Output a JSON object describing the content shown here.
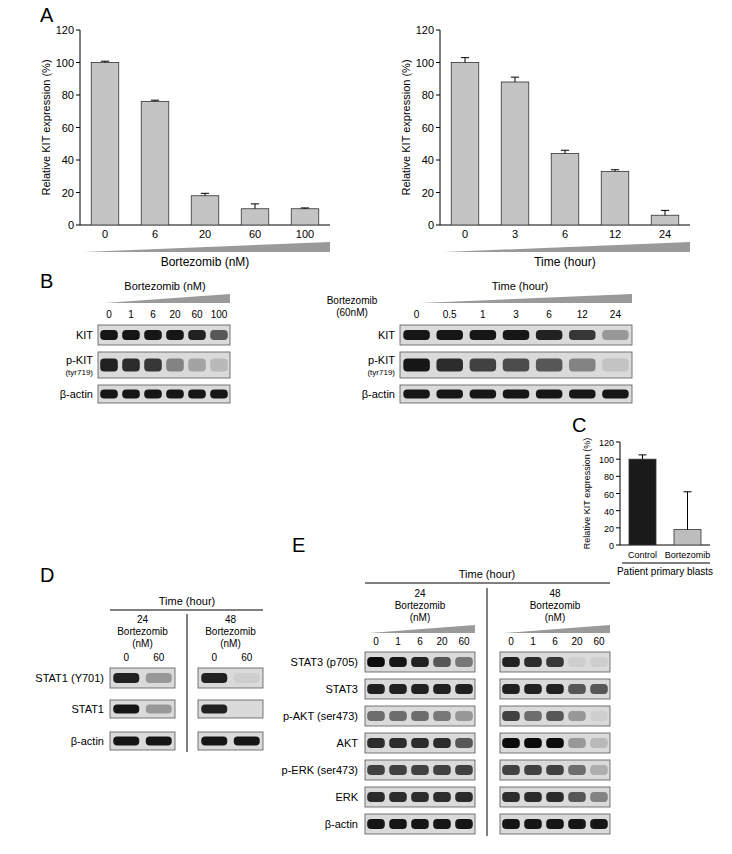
{
  "panel_labels": [
    "A",
    "B",
    "C",
    "D",
    "E"
  ],
  "chart_data": [
    {
      "type": "bar",
      "xlabel": "Bortezomib (nM)",
      "ylabel": "Relative KIT expression (%)",
      "categories": [
        "0",
        "6",
        "20",
        "60",
        "100"
      ],
      "values": [
        100,
        76,
        18,
        10,
        10
      ],
      "errors": [
        0.8,
        0.8,
        1.5,
        3,
        0.5
      ],
      "color": "#c4c4c4",
      "ylim": [
        0,
        120
      ],
      "yticks": [
        0,
        20,
        40,
        60,
        80,
        100,
        120
      ]
    },
    {
      "type": "bar",
      "xlabel": "Time (hour)",
      "ylabel": "Relative KIT expression (%)",
      "categories": [
        "0",
        "3",
        "6",
        "12",
        "24"
      ],
      "values": [
        100,
        88,
        44,
        33,
        6
      ],
      "errors": [
        3,
        3,
        2,
        1,
        3
      ],
      "color": "#c4c4c4",
      "ylim": [
        0,
        120
      ],
      "yticks": [
        0,
        20,
        40,
        60,
        80,
        100,
        120
      ]
    },
    {
      "type": "bar",
      "xlabel": "Patient primary blasts",
      "ylabel": "Relative KIT expression (%)",
      "categories": [
        "Control",
        "Bortezomib"
      ],
      "values": [
        100,
        18
      ],
      "errors": [
        5,
        44
      ],
      "colors": [
        "#1a1a1a",
        "#bdbdbd"
      ],
      "ylim": [
        0,
        120
      ],
      "yticks": [
        0,
        20,
        40,
        60,
        80,
        100,
        120
      ]
    }
  ],
  "blots": [
    {
      "title": "Bortezomib (nM)",
      "lanes": [
        "0",
        "1",
        "6",
        "20",
        "60",
        "100"
      ],
      "rows": [
        {
          "label": "KIT",
          "intensity": [
            0.9,
            0.9,
            0.9,
            0.9,
            0.85,
            0.6
          ]
        },
        {
          "label": "p-KIT",
          "sublabel": "(tyr719)",
          "intensity": [
            0.85,
            0.8,
            0.75,
            0.4,
            0.25,
            0.15
          ]
        },
        {
          "label": "β-actin",
          "intensity": [
            0.9,
            0.9,
            0.9,
            0.9,
            0.9,
            0.9
          ]
        }
      ]
    },
    {
      "title": "Time (hour)",
      "condition": [
        "Bortezomib",
        "(60nM)"
      ],
      "lanes": [
        "0",
        "0.5",
        "1",
        "3",
        "6",
        "12",
        "24"
      ],
      "rows": [
        {
          "label": "KIT",
          "intensity": [
            0.9,
            0.9,
            0.9,
            0.9,
            0.85,
            0.75,
            0.3
          ]
        },
        {
          "label": "p-KIT",
          "sublabel": "(tyr719)",
          "intensity": [
            0.9,
            0.8,
            0.7,
            0.65,
            0.6,
            0.4,
            0.1
          ]
        },
        {
          "label": "β-actin",
          "intensity": [
            0.9,
            0.9,
            0.9,
            0.9,
            0.9,
            0.9,
            0.9
          ]
        }
      ]
    },
    {
      "title": "Time (hour)",
      "groups": [
        {
          "time": "24",
          "condition": [
            "Bortezomib",
            "(nM)"
          ],
          "lanes": [
            "0",
            "60"
          ]
        },
        {
          "time": "48",
          "condition": [
            "Bortezomib",
            "(nM)"
          ],
          "lanes": [
            "0",
            "60"
          ]
        }
      ],
      "rows": [
        {
          "label": "STAT1 (Y701)",
          "intensity": [
            [
              0.85,
              0.3
            ],
            [
              0.85,
              0.05
            ]
          ]
        },
        {
          "label": "STAT1",
          "intensity": [
            [
              0.9,
              0.3
            ],
            [
              0.85,
              0.0
            ]
          ]
        },
        {
          "label": "β-actin",
          "intensity": [
            [
              0.9,
              0.9
            ],
            [
              0.9,
              0.9
            ]
          ]
        }
      ]
    },
    {
      "title": "Time (hour)",
      "groups": [
        {
          "time": "24",
          "condition": [
            "Bortezomib",
            "(nM)"
          ],
          "lanes": [
            "0",
            "1",
            "6",
            "20",
            "60"
          ]
        },
        {
          "time": "48",
          "condition": [
            "Bortezomib",
            "(nM)"
          ],
          "lanes": [
            "0",
            "1",
            "6",
            "20",
            "60"
          ]
        }
      ],
      "rows": [
        {
          "label": "STAT3 (p705)",
          "intensity": [
            [
              0.95,
              0.9,
              0.85,
              0.6,
              0.45
            ],
            [
              0.85,
              0.8,
              0.75,
              0.05,
              0.05
            ]
          ]
        },
        {
          "label": "STAT3",
          "intensity": [
            [
              0.85,
              0.85,
              0.85,
              0.85,
              0.85
            ],
            [
              0.85,
              0.85,
              0.85,
              0.6,
              0.6
            ]
          ]
        },
        {
          "label": "p-AKT (ser473)",
          "intensity": [
            [
              0.5,
              0.5,
              0.5,
              0.45,
              0.3
            ],
            [
              0.7,
              0.5,
              0.6,
              0.3,
              0.05
            ]
          ]
        },
        {
          "label": "AKT",
          "intensity": [
            [
              0.8,
              0.8,
              0.8,
              0.8,
              0.6
            ],
            [
              0.95,
              0.95,
              0.95,
              0.3,
              0.15
            ]
          ]
        },
        {
          "label": "p-ERK (ser473)",
          "intensity": [
            [
              0.7,
              0.7,
              0.7,
              0.7,
              0.7
            ],
            [
              0.7,
              0.7,
              0.7,
              0.5,
              0.2
            ]
          ]
        },
        {
          "label": "ERK",
          "intensity": [
            [
              0.8,
              0.8,
              0.8,
              0.8,
              0.8
            ],
            [
              0.8,
              0.8,
              0.8,
              0.6,
              0.4
            ]
          ]
        },
        {
          "label": "β-actin",
          "intensity": [
            [
              0.9,
              0.9,
              0.9,
              0.9,
              0.9
            ],
            [
              0.9,
              0.9,
              0.9,
              0.9,
              0.9
            ]
          ]
        }
      ]
    }
  ]
}
